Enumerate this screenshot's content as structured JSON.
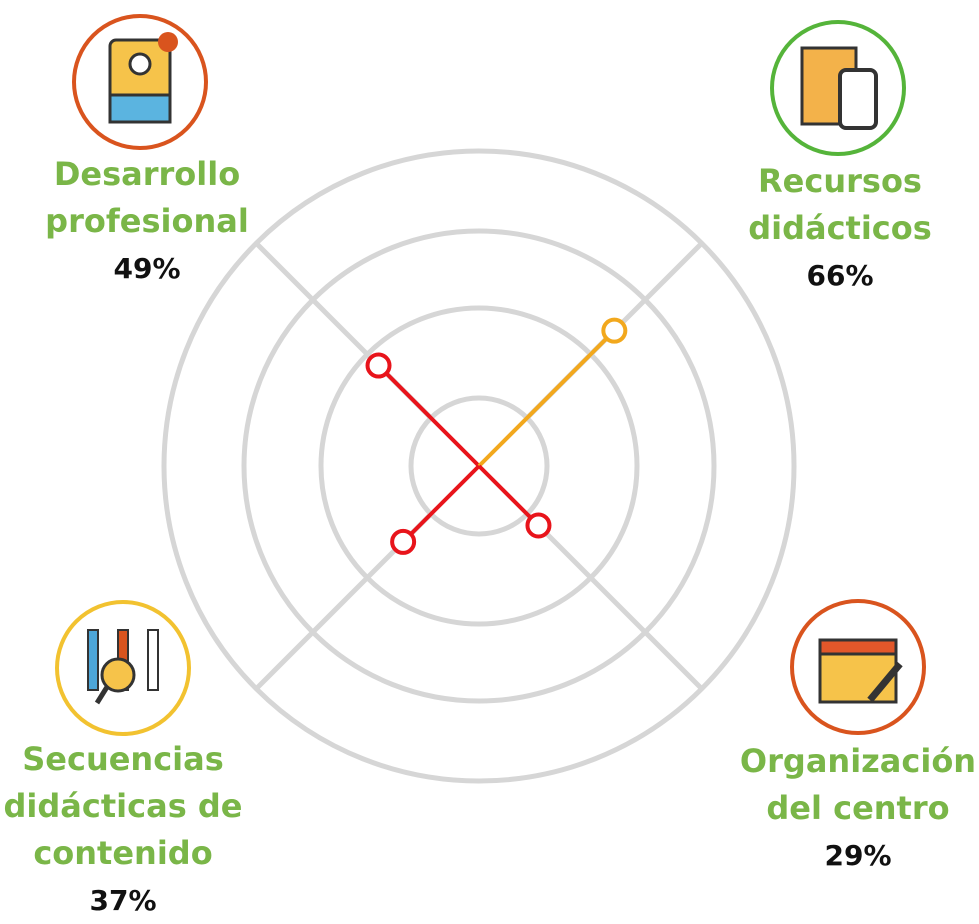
{
  "chart_data": {
    "type": "radial",
    "categories": [
      [
        "Desarrollo",
        "profesional"
      ],
      [
        "Recursos",
        "didácticos"
      ],
      [
        "Organización",
        "del centro"
      ],
      [
        "Secuencias",
        "didácticas de",
        "contenido"
      ]
    ],
    "values": [
      49,
      66,
      29,
      37
    ],
    "value_labels": [
      "49%",
      "66%",
      "29%",
      "37%"
    ],
    "colors": [
      "#e8141b",
      "#f2a81d",
      "#e8141b",
      "#e8141b"
    ],
    "ylim": [
      0,
      100
    ]
  }
}
